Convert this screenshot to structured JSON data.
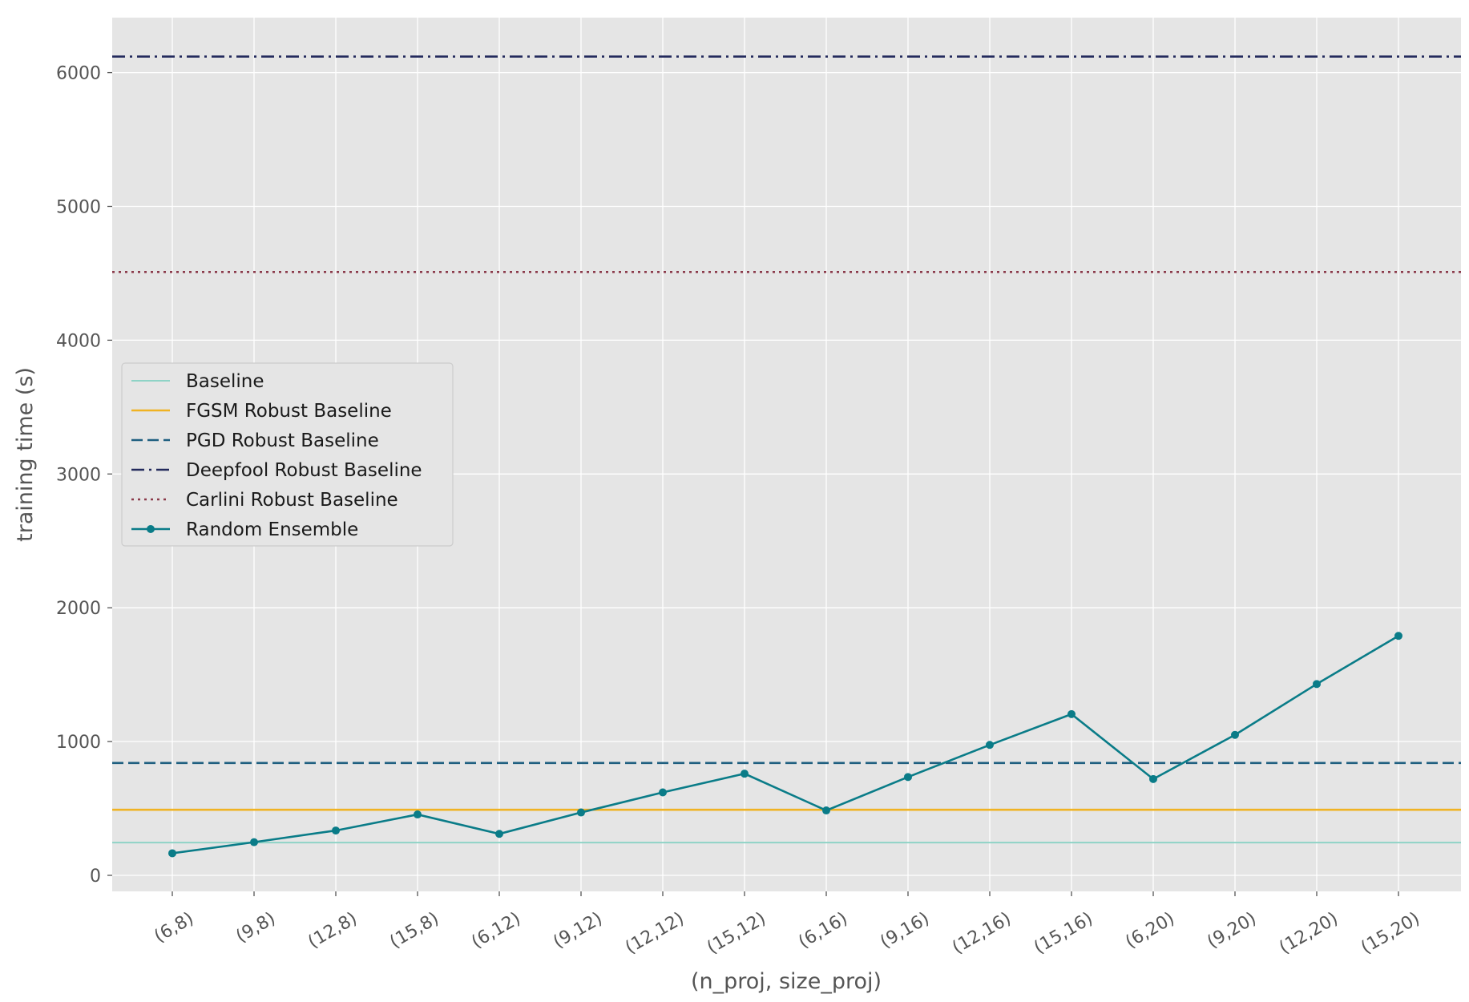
{
  "chart_data": {
    "type": "line",
    "xlabel": "(n_proj, size_proj)",
    "ylabel": "training time (s)",
    "categories": [
      "(6,8)",
      "(9,8)",
      "(12,8)",
      "(15,8)",
      "(6,12)",
      "(9,12)",
      "(12,12)",
      "(15,12)",
      "(6,16)",
      "(9,16)",
      "(12,16)",
      "(15,16)",
      "(6,20)",
      "(9,20)",
      "(12,20)",
      "(15,20)"
    ],
    "ylim": [
      -130,
      6400
    ],
    "yticks": [
      0,
      1000,
      2000,
      3000,
      4000,
      5000,
      6000
    ],
    "grid": true,
    "legend_position": "center-left",
    "baselines": [
      {
        "name": "Baseline",
        "value": 245,
        "color": "#8fd3c6",
        "style": "solid"
      },
      {
        "name": "FGSM Robust Baseline",
        "value": 490,
        "color": "#f0b323",
        "style": "solid"
      },
      {
        "name": "PGD Robust Baseline",
        "value": 840,
        "color": "#1f5f80",
        "style": "dashed"
      },
      {
        "name": "Deepfool Robust Baseline",
        "value": 6120,
        "color": "#232a5c",
        "style": "dashdot"
      },
      {
        "name": "Carlini Robust Baseline",
        "value": 4510,
        "color": "#8b3a4a",
        "style": "dotted"
      }
    ],
    "series": [
      {
        "name": "Random Ensemble",
        "color": "#0a7c88",
        "values": [
          165,
          248,
          335,
          455,
          310,
          470,
          620,
          760,
          485,
          735,
          975,
          1205,
          720,
          1050,
          1430,
          1790
        ]
      }
    ]
  }
}
